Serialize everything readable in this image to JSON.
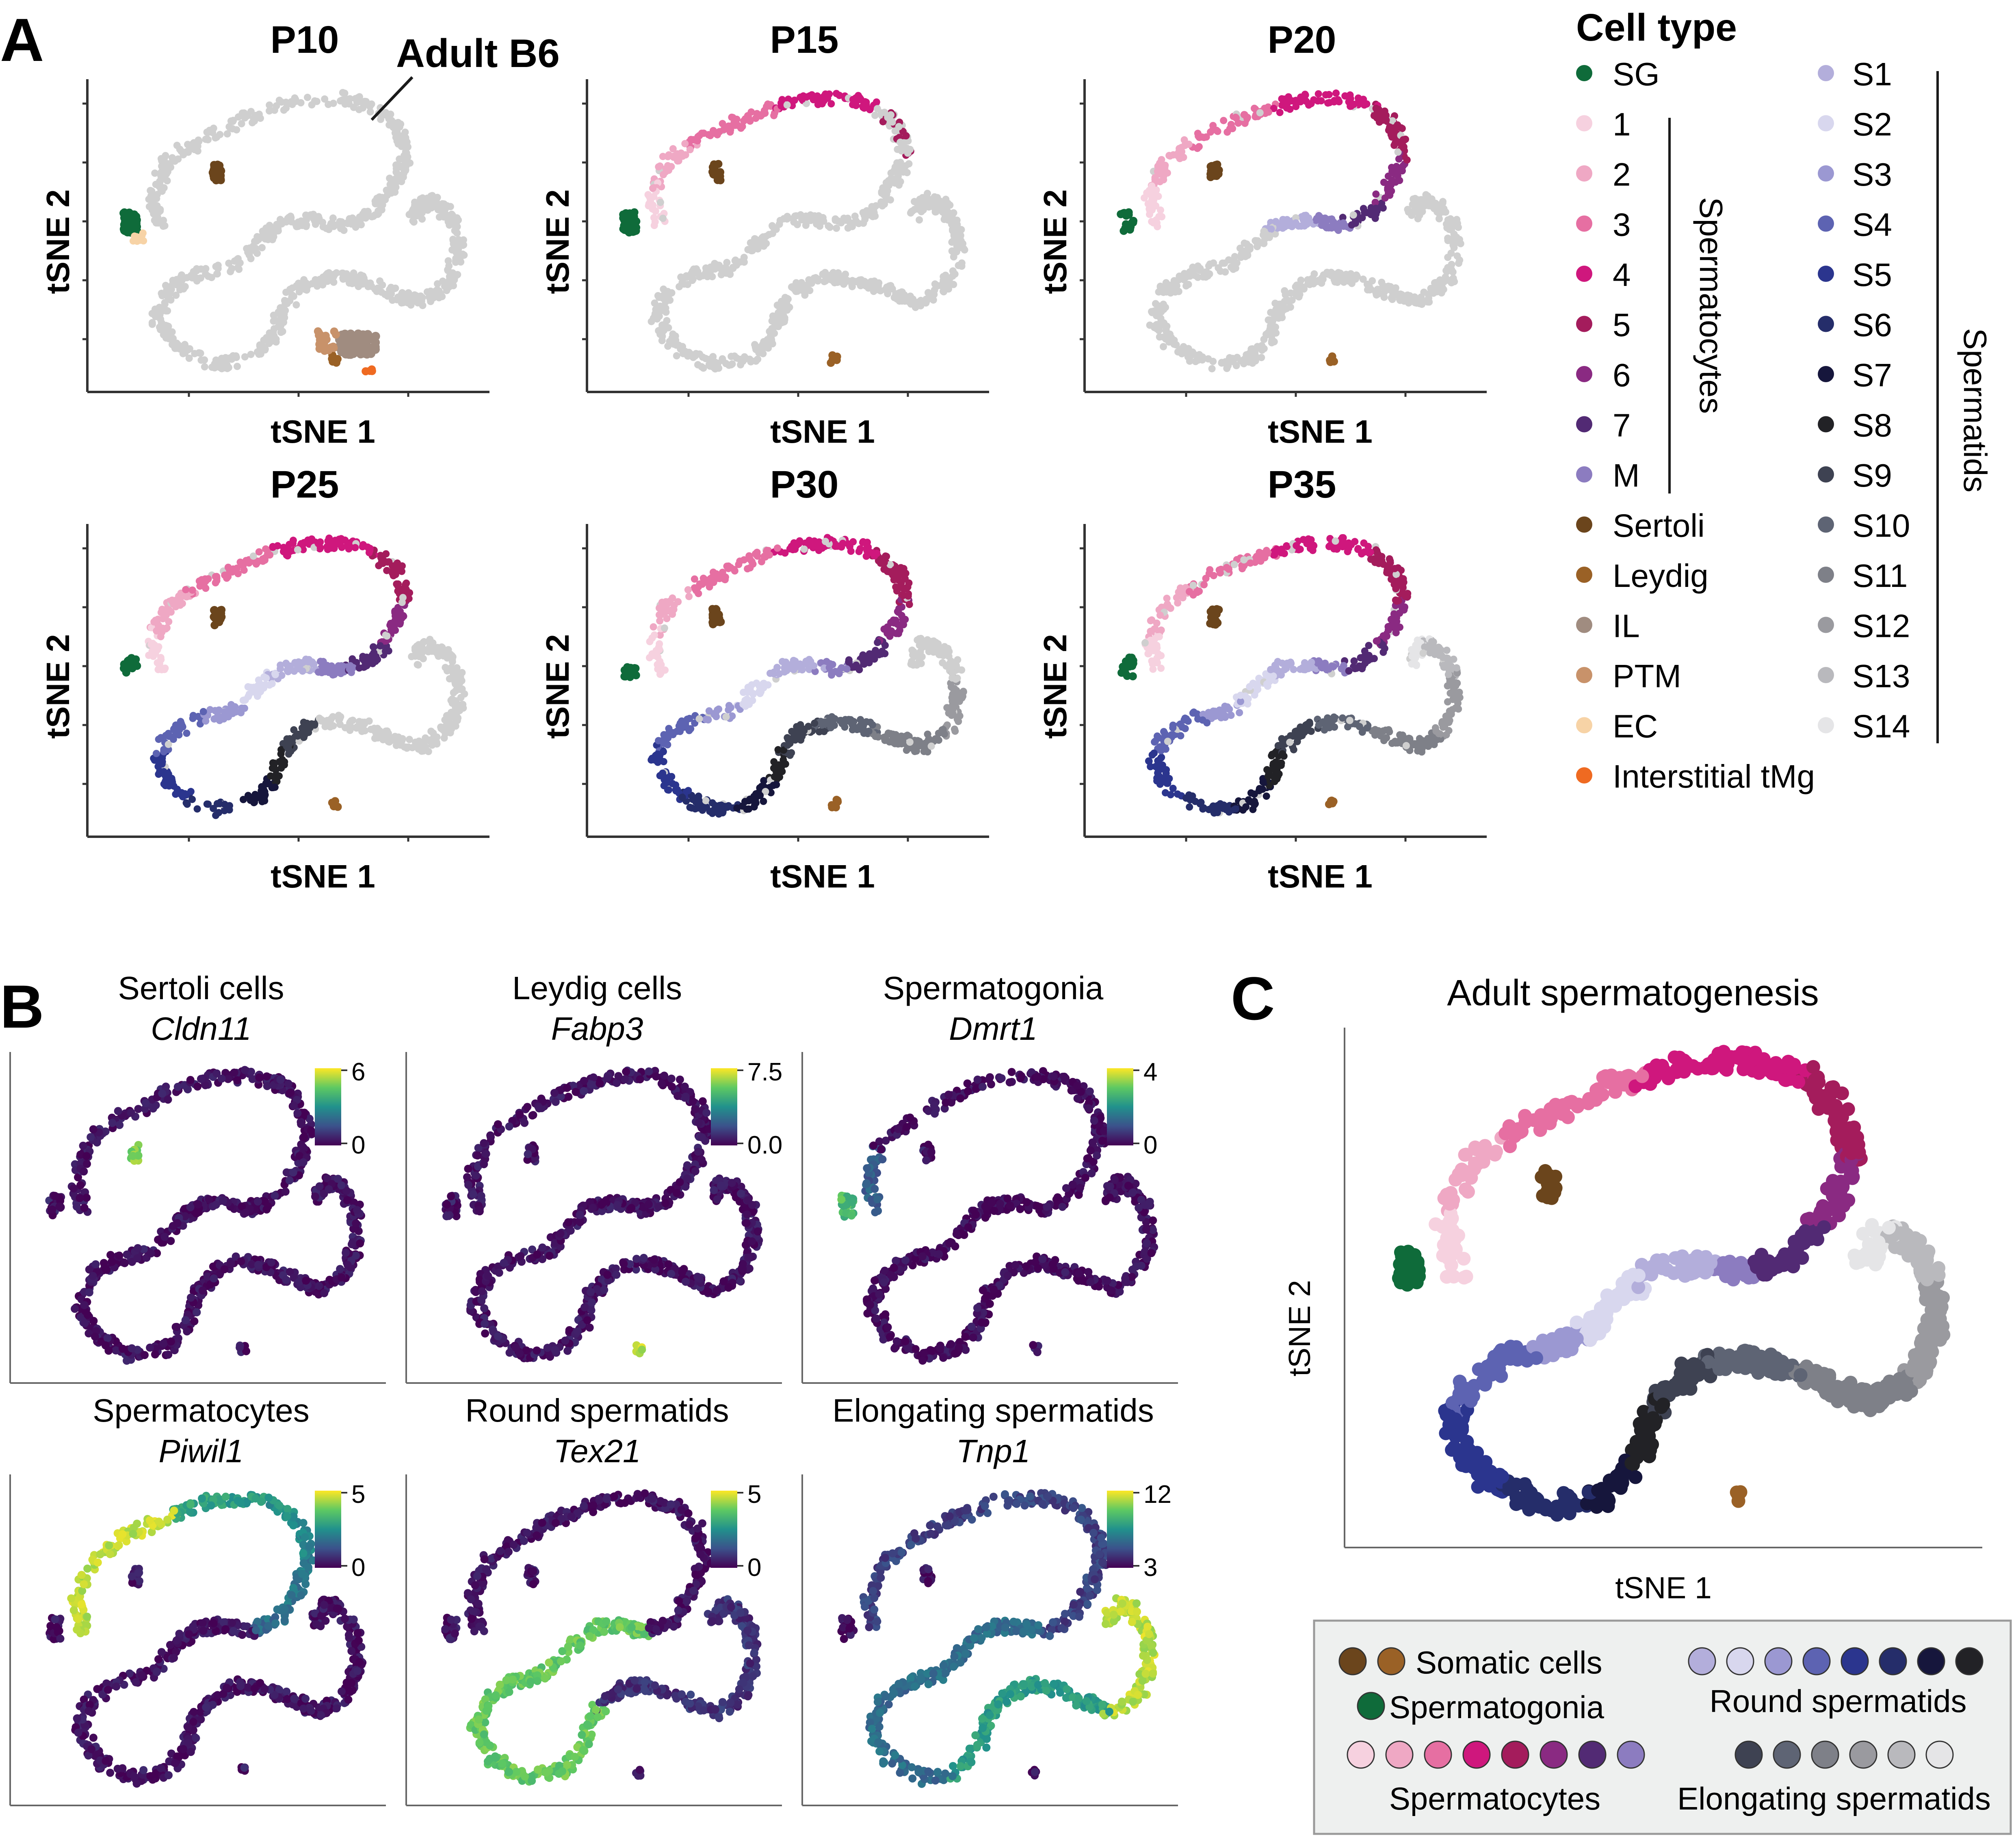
{
  "panel_letters": {
    "a": "A",
    "b": "B",
    "c": "C"
  },
  "panel_a": {
    "subplot_titles": [
      "P10",
      "P15",
      "P20",
      "P25",
      "P30",
      "P35"
    ],
    "xlabel": "tSNE 1",
    "ylabel": "tSNE 2",
    "annotation": "Adult B6",
    "legend": {
      "title": "Cell type",
      "col1": [
        {
          "label": "SG",
          "color": "#0f6b3a"
        },
        {
          "label": "1",
          "color": "#f6d1df"
        },
        {
          "label": "2",
          "color": "#efa8c4"
        },
        {
          "label": "3",
          "color": "#e66fa2"
        },
        {
          "label": "4",
          "color": "#cf177d"
        },
        {
          "label": "5",
          "color": "#a41c5c"
        },
        {
          "label": "6",
          "color": "#8a2a82"
        },
        {
          "label": "7",
          "color": "#522a74"
        },
        {
          "label": "M",
          "color": "#8c7cc0"
        },
        {
          "label": "Sertoli",
          "color": "#6b451c"
        },
        {
          "label": "Leydig",
          "color": "#9a6126"
        },
        {
          "label": "IL",
          "color": "#a08c80"
        },
        {
          "label": "PTM",
          "color": "#c8926a"
        },
        {
          "label": "EC",
          "color": "#f7d3a6"
        },
        {
          "label": "Interstitial tMg",
          "color": "#ef6a21"
        }
      ],
      "col2": [
        {
          "label": "S1",
          "color": "#b3aedb"
        },
        {
          "label": "S2",
          "color": "#d8d7ee"
        },
        {
          "label": "S3",
          "color": "#9b98d2"
        },
        {
          "label": "S4",
          "color": "#5d63b2"
        },
        {
          "label": "S5",
          "color": "#2b358e"
        },
        {
          "label": "S6",
          "color": "#252d6a"
        },
        {
          "label": "S7",
          "color": "#16163c"
        },
        {
          "label": "S8",
          "color": "#222226"
        },
        {
          "label": "S9",
          "color": "#3e4252"
        },
        {
          "label": "S10",
          "color": "#5e6474"
        },
        {
          "label": "S11",
          "color": "#7e8088"
        },
        {
          "label": "S12",
          "color": "#9a9a9f"
        },
        {
          "label": "S13",
          "color": "#b9b9bd"
        },
        {
          "label": "S14",
          "color": "#e5e5e7"
        }
      ],
      "group_spermatocytes": "Spermatocytes",
      "group_spermatids": "Spermatids"
    }
  },
  "panel_b": {
    "subplots": [
      {
        "title": "Sertoli cells",
        "gene": "Cldn11",
        "cbar_max": "6",
        "cbar_min": "0"
      },
      {
        "title": "Leydig cells",
        "gene": "Fabp3",
        "cbar_max": "7.5",
        "cbar_min": "0.0"
      },
      {
        "title": "Spermatogonia",
        "gene": "Dmrt1",
        "cbar_max": "4",
        "cbar_min": "0"
      },
      {
        "title": "Spermatocytes",
        "gene": "Piwil1",
        "cbar_max": "5",
        "cbar_min": "0"
      },
      {
        "title": "Round spermatids",
        "gene": "Tex21",
        "cbar_max": "5",
        "cbar_min": "0"
      },
      {
        "title": "Elongating spermatids",
        "gene": "Tnp1",
        "cbar_max": "12",
        "cbar_min": "3"
      }
    ],
    "colormap": [
      "#440154",
      "#3b528b",
      "#21918c",
      "#5ec962",
      "#fde725"
    ]
  },
  "panel_c": {
    "title": "Adult spermatogenesis",
    "xlabel": "tSNE 1",
    "ylabel": "tSNE 2",
    "legend": {
      "somatic": {
        "label": "Somatic cells",
        "colors": [
          "#6b451c",
          "#9a6126"
        ]
      },
      "spermatogonia": {
        "label": "Spermatogonia",
        "colors": [
          "#0f6b3a"
        ]
      },
      "spermatocytes": {
        "label": "Spermatocytes",
        "colors": [
          "#f6d1df",
          "#efa8c4",
          "#e66fa2",
          "#cf177d",
          "#a41c5c",
          "#8a2a82",
          "#522a74",
          "#8c7cc0"
        ]
      },
      "round": {
        "label": "Round spermatids",
        "colors": [
          "#b3aedb",
          "#d8d7ee",
          "#9b98d2",
          "#5d63b2",
          "#2b358e",
          "#252d6a",
          "#16163c",
          "#222226"
        ]
      },
      "elongating": {
        "label": "Elongating spermatids",
        "colors": [
          "#3e4252",
          "#5e6474",
          "#7e8088",
          "#9a9a9f",
          "#b9b9bd",
          "#e5e5e7"
        ]
      }
    }
  },
  "chart_data": [
    {
      "type": "scatter",
      "panel": "A",
      "title": "P10",
      "xlabel": "tSNE 1",
      "ylabel": "tSNE 2",
      "note": "mostly grey background cells; SG, Sertoli, Leydig, IL, PTM, EC, Interstitial tMg colored"
    },
    {
      "type": "scatter",
      "panel": "A",
      "title": "P15",
      "xlabel": "tSNE 1",
      "ylabel": "tSNE 2",
      "note": "SG, spermatocytes 1-5, Sertoli, Leydig colored"
    },
    {
      "type": "scatter",
      "panel": "A",
      "title": "P20",
      "xlabel": "tSNE 1",
      "ylabel": "tSNE 2",
      "note": "SG, spermatocytes 1-7, M, early round spermatids colored"
    },
    {
      "type": "scatter",
      "panel": "A",
      "title": "P25",
      "xlabel": "tSNE 1",
      "ylabel": "tSNE 2",
      "note": "full spermatocytes, round spermatids S1-S9 colored"
    },
    {
      "type": "scatter",
      "panel": "A",
      "title": "P30",
      "xlabel": "tSNE 1",
      "ylabel": "tSNE 2",
      "note": "spermatocytes, round and elongating spermatids S1-S12 colored"
    },
    {
      "type": "scatter",
      "panel": "A",
      "title": "P35",
      "xlabel": "tSNE 1",
      "ylabel": "tSNE 2",
      "note": "all stages S1-S14 colored"
    },
    {
      "type": "scatter",
      "panel": "B",
      "title": "Sertoli cells",
      "gene": "Cldn11",
      "colorbar_range": [
        0,
        6
      ]
    },
    {
      "type": "scatter",
      "panel": "B",
      "title": "Leydig cells",
      "gene": "Fabp3",
      "colorbar_range": [
        0.0,
        7.5
      ]
    },
    {
      "type": "scatter",
      "panel": "B",
      "title": "Spermatogonia",
      "gene": "Dmrt1",
      "colorbar_range": [
        0,
        4
      ]
    },
    {
      "type": "scatter",
      "panel": "B",
      "title": "Spermatocytes",
      "gene": "Piwil1",
      "colorbar_range": [
        0,
        5
      ]
    },
    {
      "type": "scatter",
      "panel": "B",
      "title": "Round spermatids",
      "gene": "Tex21",
      "colorbar_range": [
        0,
        5
      ]
    },
    {
      "type": "scatter",
      "panel": "B",
      "title": "Elongating spermatids",
      "gene": "Tnp1",
      "colorbar_range": [
        3,
        12
      ]
    },
    {
      "type": "scatter",
      "panel": "C",
      "title": "Adult spermatogenesis",
      "xlabel": "tSNE 1",
      "ylabel": "tSNE 2"
    }
  ]
}
